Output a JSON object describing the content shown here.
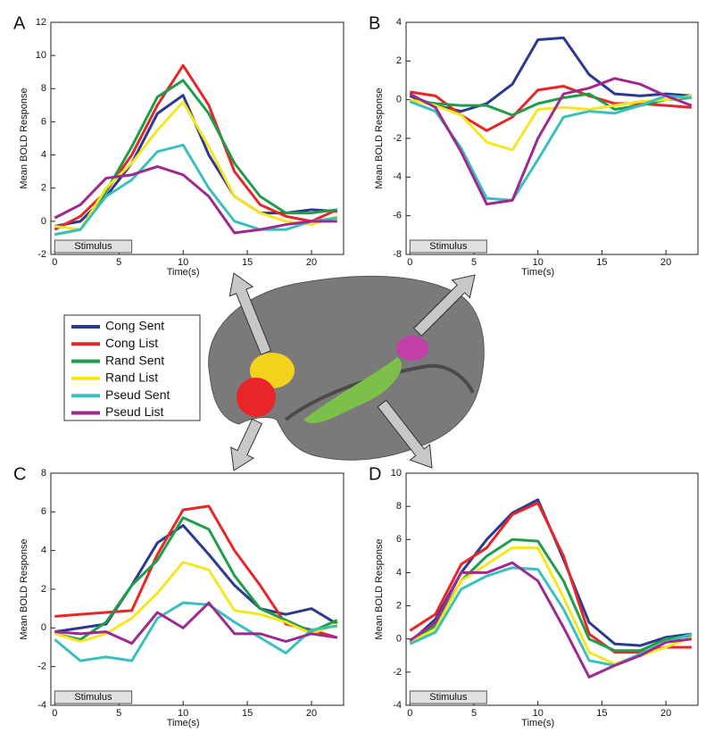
{
  "chart_data": [
    {
      "type": "line",
      "panel_label": "A",
      "ylabel": "Mean BOLD Response",
      "xlabel": "Time(s)",
      "annotation": "Stimulus",
      "xlim": [
        -0.3,
        22.5
      ],
      "ylim": [
        -2,
        12
      ],
      "xticks": [
        0,
        5,
        10,
        15,
        20
      ],
      "yticks": [
        -2,
        0,
        2,
        4,
        6,
        8,
        10,
        12
      ],
      "x": [
        0,
        2,
        4,
        6,
        8,
        10,
        12,
        14,
        16,
        18,
        20,
        22
      ],
      "series": [
        {
          "name": "Cong Sent",
          "color": "#2b3a8f",
          "values": [
            -0.3,
            0,
            1.5,
            3.5,
            6.5,
            7.6,
            4,
            1.5,
            0.5,
            0.5,
            0.7,
            0.6
          ]
        },
        {
          "name": "Cong List",
          "color": "#e8262a",
          "values": [
            -0.5,
            0.3,
            1.8,
            4,
            7,
            9.4,
            7,
            3,
            1,
            0.3,
            0,
            0.7
          ]
        },
        {
          "name": "Rand Sent",
          "color": "#1e9e4a",
          "values": [
            -0.8,
            -0.5,
            1.8,
            4.5,
            7.5,
            8.5,
            6.5,
            3.5,
            1.5,
            0.5,
            0.5,
            0.7
          ]
        },
        {
          "name": "Rand List",
          "color": "#f5e620",
          "values": [
            -0.3,
            -0.5,
            2,
            3.5,
            5.5,
            7.2,
            4.5,
            1.5,
            0.5,
            0,
            -0.2,
            0.3
          ]
        },
        {
          "name": "Pseud Sent",
          "color": "#3bbfbf",
          "values": [
            -0.8,
            -0.5,
            1.5,
            2.5,
            4.2,
            4.6,
            2,
            0,
            -0.5,
            -0.5,
            0,
            0.2
          ]
        },
        {
          "name": "Pseud List",
          "color": "#9e2a8e",
          "values": [
            0.2,
            1,
            2.6,
            2.8,
            3.3,
            2.8,
            1.5,
            -0.7,
            -0.5,
            -0.2,
            0,
            0
          ]
        }
      ]
    },
    {
      "type": "line",
      "panel_label": "B",
      "ylabel": "Mean BOLD Response",
      "xlabel": "Time(s)",
      "annotation": "Stimulus",
      "xlim": [
        -0.3,
        22.5
      ],
      "ylim": [
        -8,
        4
      ],
      "xticks": [
        0,
        5,
        10,
        15,
        20
      ],
      "yticks": [
        -8,
        -6,
        -4,
        -2,
        0,
        2,
        4
      ],
      "x": [
        0,
        2,
        4,
        6,
        8,
        10,
        12,
        14,
        16,
        18,
        20,
        22
      ],
      "series": [
        {
          "name": "Cong Sent",
          "color": "#2b3a8f",
          "values": [
            0.2,
            -0.3,
            -0.6,
            -0.2,
            0.8,
            3.1,
            3.2,
            1.3,
            0.3,
            0.2,
            0.3,
            0.2
          ]
        },
        {
          "name": "Cong List",
          "color": "#e8262a",
          "values": [
            0.4,
            0.2,
            -0.8,
            -1.6,
            -0.9,
            0.5,
            0.7,
            0.2,
            -0.2,
            -0.2,
            -0.3,
            -0.4
          ]
        },
        {
          "name": "Rand Sent",
          "color": "#1e9e4a",
          "values": [
            0,
            -0.2,
            -0.3,
            -0.3,
            -0.8,
            -0.2,
            0.1,
            0.3,
            -0.5,
            -0.3,
            0,
            0.1
          ]
        },
        {
          "name": "Rand List",
          "color": "#f5e620",
          "values": [
            0,
            -0.3,
            -0.8,
            -2.2,
            -2.6,
            -0.5,
            -0.4,
            -0.5,
            -0.3,
            -0.1,
            0,
            0.2
          ]
        },
        {
          "name": "Pseud Sent",
          "color": "#3bbfbf",
          "values": [
            -0.1,
            -0.6,
            -2.5,
            -5.1,
            -5.2,
            -3.1,
            -0.9,
            -0.6,
            -0.7,
            -0.3,
            0.2,
            0.1
          ]
        },
        {
          "name": "Pseud List",
          "color": "#9e2a8e",
          "values": [
            0.3,
            -0.4,
            -2.7,
            -5.4,
            -5.2,
            -2,
            0.3,
            0.6,
            1.1,
            0.8,
            0.2,
            -0.3
          ]
        }
      ]
    },
    {
      "type": "line",
      "panel_label": "C",
      "ylabel": "Mean BOLD Response",
      "xlabel": "Time(s)",
      "annotation": "Stimulus",
      "xlim": [
        -0.3,
        22.5
      ],
      "ylim": [
        -4,
        8
      ],
      "xticks": [
        0,
        5,
        10,
        15,
        20
      ],
      "yticks": [
        -4,
        -2,
        0,
        2,
        4,
        6,
        8
      ],
      "x": [
        0,
        2,
        4,
        6,
        8,
        10,
        12,
        14,
        16,
        18,
        20,
        22
      ],
      "series": [
        {
          "name": "Cong Sent",
          "color": "#2b3a8f",
          "values": [
            -0.2,
            0,
            0.2,
            2.2,
            4.4,
            5.3,
            3.8,
            2.2,
            1,
            0.7,
            1,
            0.2
          ]
        },
        {
          "name": "Cong List",
          "color": "#e8262a",
          "values": [
            0.6,
            0.7,
            0.8,
            0.9,
            3.8,
            6.1,
            6.3,
            4,
            2.2,
            0.2,
            -0.1,
            -0.5
          ]
        },
        {
          "name": "Rand Sent",
          "color": "#1e9e4a",
          "values": [
            -0.3,
            -0.6,
            0.3,
            2.2,
            3.5,
            5.7,
            5.1,
            2.7,
            1,
            0.4,
            -0.2,
            0.4
          ]
        },
        {
          "name": "Rand List",
          "color": "#f5e620",
          "values": [
            -0.3,
            -0.7,
            -0.3,
            0.5,
            1.8,
            3.4,
            3,
            0.9,
            0.7,
            0.3,
            -0.3,
            0.2
          ]
        },
        {
          "name": "Pseud Sent",
          "color": "#3bbfbf",
          "values": [
            -0.6,
            -1.7,
            -1.5,
            -1.7,
            0.5,
            1.3,
            1.2,
            0.3,
            -0.5,
            -1.3,
            -0.1,
            0.1
          ]
        },
        {
          "name": "Pseud List",
          "color": "#9e2a8e",
          "values": [
            -0.2,
            -0.3,
            -0.2,
            -0.8,
            0.8,
            0,
            1.3,
            -0.3,
            -0.3,
            -0.7,
            -0.3,
            -0.5
          ]
        }
      ]
    },
    {
      "type": "line",
      "panel_label": "D",
      "ylabel": "Mean BOLD Response",
      "xlabel": "Time(s)",
      "annotation": "Stimulus",
      "xlim": [
        -0.3,
        22.5
      ],
      "ylim": [
        -4,
        10
      ],
      "xticks": [
        0,
        5,
        10,
        15,
        20
      ],
      "yticks": [
        -4,
        -2,
        0,
        2,
        4,
        6,
        8,
        10
      ],
      "x": [
        0,
        2,
        4,
        6,
        8,
        10,
        12,
        14,
        16,
        18,
        20,
        22
      ],
      "series": [
        {
          "name": "Cong Sent",
          "color": "#2b3a8f",
          "values": [
            -0.2,
            1.2,
            4,
            6,
            7.6,
            8.4,
            4.8,
            1,
            -0.3,
            -0.4,
            0.1,
            0.3
          ]
        },
        {
          "name": "Cong List",
          "color": "#e8262a",
          "values": [
            0.5,
            1.5,
            4.5,
            5.5,
            7.5,
            8.2,
            5,
            0.3,
            -0.8,
            -0.8,
            -0.5,
            -0.5
          ]
        },
        {
          "name": "Rand Sent",
          "color": "#1e9e4a",
          "values": [
            -0.2,
            0.8,
            3.5,
            5,
            6,
            5.9,
            3.5,
            0,
            -0.7,
            -0.7,
            0,
            0.2
          ]
        },
        {
          "name": "Rand List",
          "color": "#f5e620",
          "values": [
            -0.2,
            0.6,
            3.5,
            4.5,
            5.5,
            5.5,
            2.5,
            -0.8,
            -1.5,
            -1,
            -0.5,
            0.1
          ]
        },
        {
          "name": "Pseud Sent",
          "color": "#3bbfbf",
          "values": [
            -0.3,
            0.4,
            3,
            3.8,
            4.3,
            4.2,
            1.8,
            -1.3,
            -1.6,
            -0.9,
            -0.2,
            0.3
          ]
        },
        {
          "name": "Pseud List",
          "color": "#9e2a8e",
          "values": [
            -0.1,
            1,
            4,
            4,
            4.6,
            3.5,
            0.7,
            -2.3,
            -1.6,
            -1,
            -0.2,
            0
          ]
        }
      ]
    }
  ]
}
